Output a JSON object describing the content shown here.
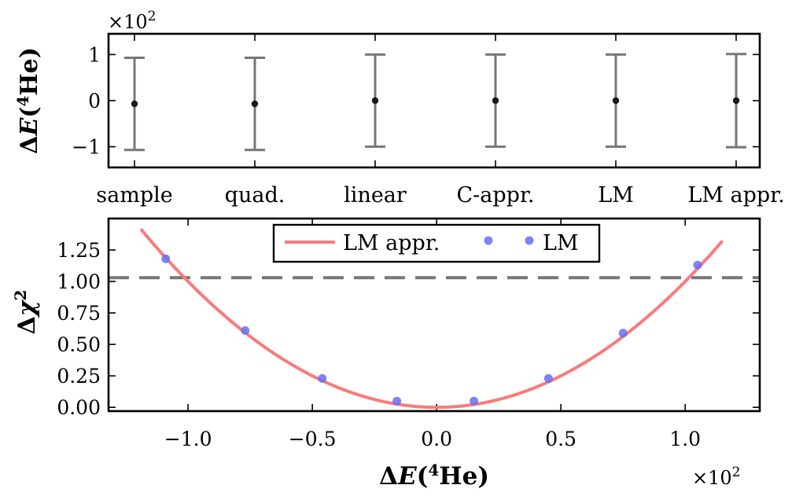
{
  "chart_data": [
    {
      "type": "scatter",
      "subtype": "errorbar",
      "categories": [
        "sample",
        "quad.",
        "linear",
        "C-appr.",
        "LM",
        "LM appr."
      ],
      "values": [
        -0.07,
        -0.07,
        0.0,
        0.0,
        0.0,
        0.0
      ],
      "err_low": [
        -1.07,
        -1.07,
        -1.0,
        -1.0,
        -1.0,
        -1.01
      ],
      "err_high": [
        0.93,
        0.93,
        1.0,
        1.0,
        1.0,
        1.01
      ],
      "ylabel": "ΔE(4He)",
      "ylabel_parts": {
        "delta": "Δ",
        "var": "E",
        "open": "(",
        "sup": "4",
        "el": "He",
        "close": ")"
      },
      "y_multiplier": {
        "base": "×10",
        "exp": "2"
      },
      "ylim": [
        -1.45,
        1.45
      ],
      "yticks": [
        -1,
        0,
        1
      ],
      "ytick_labels": [
        "−1",
        "0",
        "1"
      ],
      "marker_color": "#1a1a1a",
      "errorbar_color": "#777777"
    },
    {
      "type": "line",
      "title": "",
      "xlabel": "ΔE(4He)",
      "xlabel_parts": {
        "delta": "Δ",
        "var": "E",
        "open": "(",
        "sup": "4",
        "el": "He",
        "close": ")"
      },
      "x_multiplier": {
        "base": "×10",
        "exp": "2"
      },
      "ylabel": "Δχ2",
      "ylabel_parts": {
        "delta": "Δ",
        "chi": "χ",
        "sup": "2"
      },
      "xlim": [
        -1.32,
        1.3
      ],
      "ylim": [
        -0.03,
        1.5
      ],
      "xticks": [
        -1.0,
        -0.5,
        0.0,
        0.5,
        1.0
      ],
      "xtick_labels": [
        "−1.0",
        "−0.5",
        "0.0",
        "0.5",
        "1.0"
      ],
      "yticks": [
        0.0,
        0.25,
        0.5,
        0.75,
        1.0,
        1.25
      ],
      "ytick_labels": [
        "0.00",
        "0.25",
        "0.50",
        "0.75",
        "1.00",
        "1.25"
      ],
      "series": [
        {
          "name": "LM appr.",
          "kind": "line",
          "color": "#f87b7b",
          "formula": "y = a * x^2",
          "a": 1.0,
          "x_range": [
            -1.19,
            1.15
          ]
        },
        {
          "name": "LM",
          "kind": "scatter",
          "color": "#6a6ef0",
          "x": [
            -1.09,
            -0.77,
            -0.46,
            -0.16,
            0.15,
            0.45,
            0.75,
            1.05
          ],
          "y": [
            1.18,
            0.61,
            0.23,
            0.05,
            0.05,
            0.23,
            0.59,
            1.13
          ]
        }
      ],
      "hline": {
        "y": 1.03,
        "style": "dashed",
        "color": "#777777"
      },
      "legend": {
        "position": "top-center",
        "entries": [
          "LM appr.",
          "LM"
        ]
      }
    }
  ]
}
